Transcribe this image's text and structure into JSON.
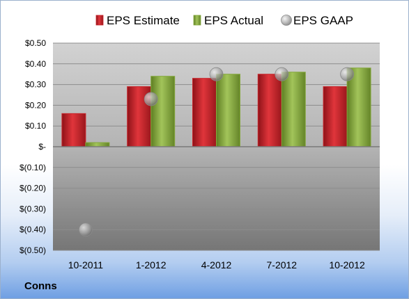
{
  "company": "Conns",
  "colors": {
    "estimate": "#c8252b",
    "actual": "#84a83c",
    "gaap": "#a6a6a6"
  },
  "chart_data": {
    "type": "bar",
    "categories": [
      "10-2011",
      "1-2012",
      "4-2012",
      "7-2012",
      "10-2012"
    ],
    "series": [
      {
        "name": "EPS Estimate",
        "kind": "bar",
        "values": [
          0.16,
          0.29,
          0.33,
          0.35,
          0.29
        ]
      },
      {
        "name": "EPS Actual",
        "kind": "bar",
        "values": [
          0.02,
          0.34,
          0.35,
          0.36,
          0.38
        ]
      },
      {
        "name": "EPS GAAP",
        "kind": "scatter",
        "values": [
          -0.4,
          0.23,
          0.35,
          0.35,
          0.35
        ]
      }
    ],
    "ylim": [
      -0.5,
      0.5
    ],
    "yticks": [
      0.5,
      0.4,
      0.3,
      0.2,
      0.1,
      0,
      -0.1,
      -0.2,
      -0.3,
      -0.4,
      -0.5
    ],
    "ytick_labels": [
      "$0.50",
      "$0.40",
      "$0.30",
      "$0.20",
      "$0.10",
      "$-",
      "$(0.10)",
      "$(0.20)",
      "$(0.30)",
      "$(0.40)",
      "$(0.50)"
    ],
    "grid": true,
    "legend": "top"
  }
}
